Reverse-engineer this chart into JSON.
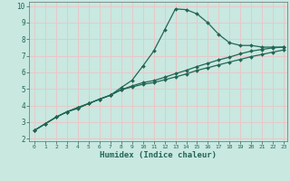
{
  "xlabel": "Humidex (Indice chaleur)",
  "bg_color": "#c8e8e0",
  "grid_color": "#e8c8c8",
  "line_color": "#226655",
  "xlim": [
    -0.5,
    23.3
  ],
  "ylim": [
    1.85,
    10.25
  ],
  "xticks": [
    0,
    1,
    2,
    3,
    4,
    5,
    6,
    7,
    8,
    9,
    10,
    11,
    12,
    13,
    14,
    15,
    16,
    17,
    18,
    19,
    20,
    21,
    22,
    23
  ],
  "yticks": [
    2,
    3,
    4,
    5,
    6,
    7,
    8,
    9,
    10
  ],
  "line1_x": [
    0,
    1,
    2,
    3,
    4,
    5,
    6,
    7,
    8,
    9,
    10,
    11,
    12,
    13,
    14,
    15,
    16,
    17,
    18,
    19,
    20,
    21,
    22,
    23
  ],
  "line1_y": [
    2.5,
    2.9,
    3.3,
    3.62,
    3.82,
    4.12,
    4.38,
    4.62,
    5.08,
    5.52,
    6.38,
    7.28,
    8.55,
    9.82,
    9.78,
    9.52,
    8.98,
    8.28,
    7.78,
    7.62,
    7.62,
    7.52,
    7.52,
    7.52
  ],
  "line2_x": [
    0,
    1,
    2,
    3,
    4,
    5,
    6,
    7,
    8,
    9,
    10,
    11,
    12,
    13,
    14,
    15,
    16,
    17,
    18,
    19,
    20,
    21,
    22,
    23
  ],
  "line2_y": [
    2.5,
    2.9,
    3.3,
    3.62,
    3.88,
    4.12,
    4.38,
    4.62,
    4.95,
    5.18,
    5.38,
    5.5,
    5.7,
    5.92,
    6.12,
    6.35,
    6.55,
    6.75,
    6.92,
    7.12,
    7.28,
    7.38,
    7.48,
    7.52
  ],
  "line3_x": [
    0,
    1,
    2,
    3,
    4,
    5,
    6,
    7,
    8,
    9,
    10,
    11,
    12,
    13,
    14,
    15,
    16,
    17,
    18,
    19,
    20,
    21,
    22,
    23
  ],
  "line3_y": [
    2.5,
    2.9,
    3.3,
    3.62,
    3.88,
    4.12,
    4.38,
    4.62,
    4.95,
    5.12,
    5.28,
    5.38,
    5.55,
    5.72,
    5.9,
    6.12,
    6.28,
    6.45,
    6.62,
    6.78,
    6.95,
    7.08,
    7.22,
    7.35
  ]
}
